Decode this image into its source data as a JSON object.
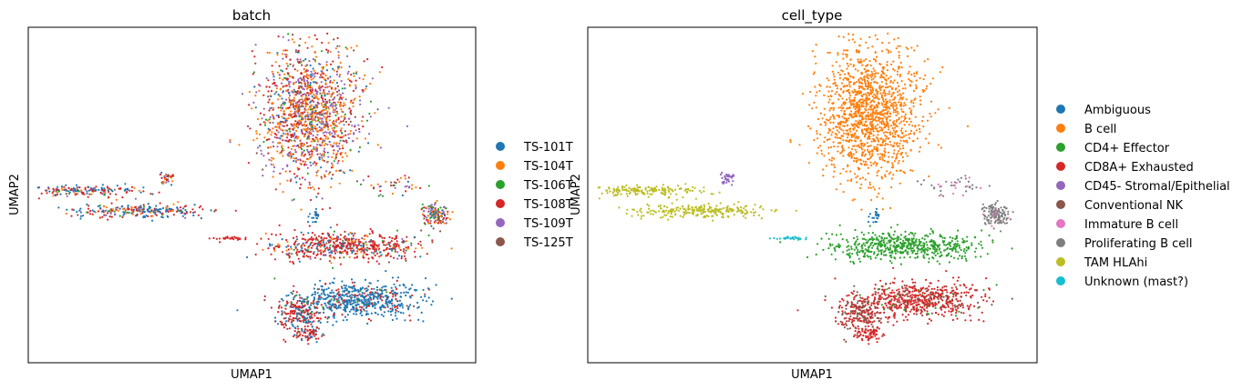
{
  "chart_data": [
    {
      "type": "scatter",
      "title": "batch",
      "xlabel": "UMAP1",
      "ylabel": "UMAP2",
      "grid": false,
      "legend_position": "right",
      "series": [
        {
          "name": "TS-101T",
          "color": "#1f77b4"
        },
        {
          "name": "TS-104T",
          "color": "#ff7f0e"
        },
        {
          "name": "TS-106T",
          "color": "#2ca02c"
        },
        {
          "name": "TS-108T",
          "color": "#d62728"
        },
        {
          "name": "TS-109T",
          "color": "#9467bd"
        },
        {
          "name": "TS-125T",
          "color": "#8c564b"
        }
      ]
    },
    {
      "type": "scatter",
      "title": "cell_type",
      "xlabel": "UMAP1",
      "ylabel": "UMAP2",
      "grid": false,
      "legend_position": "right",
      "series": [
        {
          "name": "Ambiguous",
          "color": "#1f77b4"
        },
        {
          "name": "B cell",
          "color": "#ff7f0e"
        },
        {
          "name": "CD4+ Effector",
          "color": "#2ca02c"
        },
        {
          "name": "CD8A+ Exhausted",
          "color": "#d62728"
        },
        {
          "name": "CD45- Stromal/Epithelial",
          "color": "#9467bd"
        },
        {
          "name": "Conventional NK",
          "color": "#8c564b"
        },
        {
          "name": "Immature B cell",
          "color": "#e377c2"
        },
        {
          "name": "Proliferating B cell",
          "color": "#7f7f7f"
        },
        {
          "name": "TAM HLAhi",
          "color": "#bcbd22"
        },
        {
          "name": "Unknown (mast?)",
          "color": "#17becf"
        }
      ]
    }
  ]
}
